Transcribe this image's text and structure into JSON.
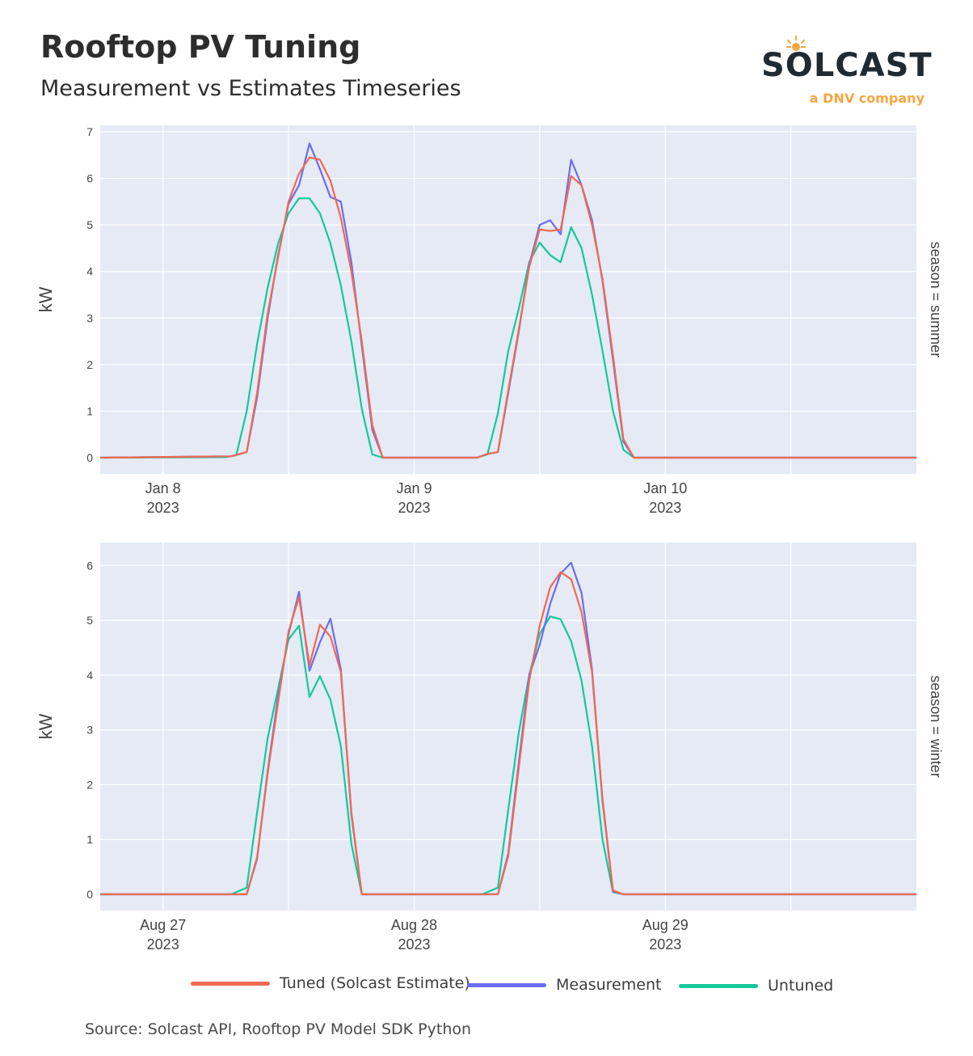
{
  "header": {
    "title": "Rooftop PV Tuning",
    "subtitle": "Measurement vs Estimates Timeseries"
  },
  "logo": {
    "word": "SOLCAST",
    "tagline": "a DNV company",
    "colors": {
      "word": "#1f2a33",
      "tagline": "#f5a640",
      "sun": "#f5a640"
    }
  },
  "source_note": "Source: Solcast API, Rooftop PV Model SDK Python",
  "colors": {
    "tuned": "#ef6a50",
    "measurement": "#6d6cf0",
    "untuned": "#15c89a",
    "plot_bg": "#e5eaf5",
    "grid": "#ffffff"
  },
  "chart_data": [
    {
      "type": "line",
      "facet_label": "season = summer",
      "ylabel": "kW",
      "xlabel": "",
      "ylim": [
        0,
        7
      ],
      "yticks": [
        0,
        1,
        2,
        3,
        4,
        5,
        6,
        7
      ],
      "xrange": [
        "2023-01-07 18:00",
        "2023-01-11 00:00"
      ],
      "x_tick_labels": [
        {
          "at": "2023-01-08 00:00",
          "line1": "Jan 8",
          "line2": "2023"
        },
        {
          "at": "2023-01-09 00:00",
          "line1": "Jan 9",
          "line2": "2023"
        },
        {
          "at": "2023-01-10 00:00",
          "line1": "Jan 10",
          "line2": "2023"
        }
      ],
      "grid": true,
      "series": [
        {
          "name": "Tuned (Solcast Estimate)",
          "points": [
            [
              "2023-01-07 18:00",
              0
            ],
            [
              "2023-01-08 06:30",
              0.03
            ],
            [
              "2023-01-08 08:00",
              0.12
            ],
            [
              "2023-01-08 09:00",
              1.4
            ],
            [
              "2023-01-08 10:00",
              3.1
            ],
            [
              "2023-01-08 11:00",
              4.3
            ],
            [
              "2023-01-08 12:00",
              5.5
            ],
            [
              "2023-01-08 13:00",
              6.1
            ],
            [
              "2023-01-08 14:00",
              6.45
            ],
            [
              "2023-01-08 15:00",
              6.4
            ],
            [
              "2023-01-08 16:00",
              5.95
            ],
            [
              "2023-01-08 17:00",
              5.15
            ],
            [
              "2023-01-08 18:00",
              4.0
            ],
            [
              "2023-01-08 19:00",
              2.5
            ],
            [
              "2023-01-08 20:00",
              0.7
            ],
            [
              "2023-01-08 21:00",
              0
            ],
            [
              "2023-01-09 06:00",
              0
            ],
            [
              "2023-01-09 07:00",
              0.08
            ],
            [
              "2023-01-09 08:00",
              0.12
            ],
            [
              "2023-01-09 09:00",
              1.45
            ],
            [
              "2023-01-09 10:00",
              2.75
            ],
            [
              "2023-01-09 11:00",
              4.1
            ],
            [
              "2023-01-09 12:00",
              4.9
            ],
            [
              "2023-01-09 13:00",
              4.87
            ],
            [
              "2023-01-09 14:00",
              4.9
            ],
            [
              "2023-01-09 15:00",
              6.05
            ],
            [
              "2023-01-09 16:00",
              5.85
            ],
            [
              "2023-01-09 17:00",
              5.0
            ],
            [
              "2023-01-09 18:00",
              3.85
            ],
            [
              "2023-01-09 19:00",
              2.2
            ],
            [
              "2023-01-09 20:00",
              0.4
            ],
            [
              "2023-01-09 21:00",
              0
            ],
            [
              "2023-01-11 00:00",
              0
            ]
          ]
        },
        {
          "name": "Measurement",
          "points": [
            [
              "2023-01-07 18:00",
              0
            ],
            [
              "2023-01-08 06:30",
              0.03
            ],
            [
              "2023-01-08 08:00",
              0.12
            ],
            [
              "2023-01-08 09:00",
              1.3
            ],
            [
              "2023-01-08 10:00",
              3.0
            ],
            [
              "2023-01-08 11:00",
              4.35
            ],
            [
              "2023-01-08 12:00",
              5.45
            ],
            [
              "2023-01-08 13:00",
              5.85
            ],
            [
              "2023-01-08 14:00",
              6.75
            ],
            [
              "2023-01-08 15:00",
              6.2
            ],
            [
              "2023-01-08 16:00",
              5.6
            ],
            [
              "2023-01-08 17:00",
              5.5
            ],
            [
              "2023-01-08 18:00",
              4.2
            ],
            [
              "2023-01-08 19:00",
              2.4
            ],
            [
              "2023-01-08 20:00",
              0.6
            ],
            [
              "2023-01-08 21:00",
              0
            ],
            [
              "2023-01-09 06:00",
              0
            ],
            [
              "2023-01-09 07:00",
              0.08
            ],
            [
              "2023-01-09 08:00",
              0.12
            ],
            [
              "2023-01-09 09:00",
              1.4
            ],
            [
              "2023-01-09 10:00",
              2.7
            ],
            [
              "2023-01-09 11:00",
              4.15
            ],
            [
              "2023-01-09 12:00",
              5.0
            ],
            [
              "2023-01-09 13:00",
              5.1
            ],
            [
              "2023-01-09 14:00",
              4.8
            ],
            [
              "2023-01-09 15:00",
              6.4
            ],
            [
              "2023-01-09 16:00",
              5.85
            ],
            [
              "2023-01-09 17:00",
              5.1
            ],
            [
              "2023-01-09 18:00",
              3.8
            ],
            [
              "2023-01-09 19:00",
              2.1
            ],
            [
              "2023-01-09 20:00",
              0.35
            ],
            [
              "2023-01-09 21:00",
              0
            ],
            [
              "2023-01-11 00:00",
              0
            ]
          ]
        },
        {
          "name": "Untuned",
          "points": [
            [
              "2023-01-07 18:00",
              0
            ],
            [
              "2023-01-08 06:00",
              0.01
            ],
            [
              "2023-01-08 07:00",
              0.05
            ],
            [
              "2023-01-08 08:00",
              1.0
            ],
            [
              "2023-01-08 09:00",
              2.45
            ],
            [
              "2023-01-08 10:00",
              3.65
            ],
            [
              "2023-01-08 11:00",
              4.6
            ],
            [
              "2023-01-08 12:00",
              5.25
            ],
            [
              "2023-01-08 13:00",
              5.57
            ],
            [
              "2023-01-08 14:00",
              5.57
            ],
            [
              "2023-01-08 15:00",
              5.25
            ],
            [
              "2023-01-08 16:00",
              4.6
            ],
            [
              "2023-01-08 17:00",
              3.7
            ],
            [
              "2023-01-08 18:00",
              2.5
            ],
            [
              "2023-01-08 19:00",
              1.05
            ],
            [
              "2023-01-08 20:00",
              0.07
            ],
            [
              "2023-01-08 21:00",
              0
            ],
            [
              "2023-01-09 06:00",
              0
            ],
            [
              "2023-01-09 07:00",
              0.07
            ],
            [
              "2023-01-09 08:00",
              0.95
            ],
            [
              "2023-01-09 09:00",
              2.3
            ],
            [
              "2023-01-09 10:00",
              3.2
            ],
            [
              "2023-01-09 11:00",
              4.2
            ],
            [
              "2023-01-09 12:00",
              4.62
            ],
            [
              "2023-01-09 13:00",
              4.35
            ],
            [
              "2023-01-09 14:00",
              4.2
            ],
            [
              "2023-01-09 15:00",
              4.95
            ],
            [
              "2023-01-09 16:00",
              4.5
            ],
            [
              "2023-01-09 17:00",
              3.5
            ],
            [
              "2023-01-09 18:00",
              2.3
            ],
            [
              "2023-01-09 19:00",
              1.0
            ],
            [
              "2023-01-09 20:00",
              0.17
            ],
            [
              "2023-01-09 21:00",
              0
            ],
            [
              "2023-01-11 00:00",
              0
            ]
          ]
        }
      ]
    },
    {
      "type": "line",
      "facet_label": "season = winter",
      "ylabel": "kW",
      "xlabel": "",
      "ylim": [
        0,
        6.3
      ],
      "yticks": [
        0,
        1,
        2,
        3,
        4,
        5,
        6
      ],
      "xrange": [
        "2023-08-26 18:00",
        "2023-08-30 00:00"
      ],
      "x_tick_labels": [
        {
          "at": "2023-08-27 00:00",
          "line1": "Aug 27",
          "line2": "2023"
        },
        {
          "at": "2023-08-28 00:00",
          "line1": "Aug 28",
          "line2": "2023"
        },
        {
          "at": "2023-08-29 00:00",
          "line1": "Aug 29",
          "line2": "2023"
        }
      ],
      "grid": true,
      "series": [
        {
          "name": "Tuned (Solcast Estimate)",
          "points": [
            [
              "2023-08-26 18:00",
              0
            ],
            [
              "2023-08-27 07:00",
              0
            ],
            [
              "2023-08-27 08:00",
              0
            ],
            [
              "2023-08-27 09:00",
              0.68
            ],
            [
              "2023-08-27 10:00",
              2.2
            ],
            [
              "2023-08-27 11:00",
              3.5
            ],
            [
              "2023-08-27 12:00",
              4.8
            ],
            [
              "2023-08-27 13:00",
              5.42
            ],
            [
              "2023-08-27 14:00",
              4.18
            ],
            [
              "2023-08-27 15:00",
              4.92
            ],
            [
              "2023-08-27 16:00",
              4.7
            ],
            [
              "2023-08-27 17:00",
              4.05
            ],
            [
              "2023-08-27 18:00",
              1.5
            ],
            [
              "2023-08-27 19:00",
              0
            ],
            [
              "2023-08-28 07:00",
              0
            ],
            [
              "2023-08-28 08:00",
              0
            ],
            [
              "2023-08-28 09:00",
              0.7
            ],
            [
              "2023-08-28 10:00",
              2.3
            ],
            [
              "2023-08-28 11:00",
              3.9
            ],
            [
              "2023-08-28 12:00",
              4.9
            ],
            [
              "2023-08-28 13:00",
              5.6
            ],
            [
              "2023-08-28 14:00",
              5.88
            ],
            [
              "2023-08-28 15:00",
              5.75
            ],
            [
              "2023-08-28 16:00",
              5.15
            ],
            [
              "2023-08-28 17:00",
              4.05
            ],
            [
              "2023-08-28 18:00",
              1.75
            ],
            [
              "2023-08-28 19:00",
              0.07
            ],
            [
              "2023-08-28 20:00",
              0
            ],
            [
              "2023-08-30 00:00",
              0
            ]
          ]
        },
        {
          "name": "Measurement",
          "points": [
            [
              "2023-08-26 18:00",
              0
            ],
            [
              "2023-08-27 07:00",
              0
            ],
            [
              "2023-08-27 08:00",
              0
            ],
            [
              "2023-08-27 09:00",
              0.65
            ],
            [
              "2023-08-27 10:00",
              2.25
            ],
            [
              "2023-08-27 11:00",
              3.6
            ],
            [
              "2023-08-27 12:00",
              4.75
            ],
            [
              "2023-08-27 13:00",
              5.52
            ],
            [
              "2023-08-27 14:00",
              4.08
            ],
            [
              "2023-08-27 15:00",
              4.6
            ],
            [
              "2023-08-27 16:00",
              5.03
            ],
            [
              "2023-08-27 17:00",
              4.1
            ],
            [
              "2023-08-27 18:00",
              1.45
            ],
            [
              "2023-08-27 19:00",
              0
            ],
            [
              "2023-08-28 07:00",
              0
            ],
            [
              "2023-08-28 08:00",
              0
            ],
            [
              "2023-08-28 09:00",
              0.75
            ],
            [
              "2023-08-28 10:00",
              2.4
            ],
            [
              "2023-08-28 11:00",
              4.0
            ],
            [
              "2023-08-28 12:00",
              4.55
            ],
            [
              "2023-08-28 13:00",
              5.3
            ],
            [
              "2023-08-28 14:00",
              5.85
            ],
            [
              "2023-08-28 15:00",
              6.05
            ],
            [
              "2023-08-28 16:00",
              5.5
            ],
            [
              "2023-08-28 17:00",
              4.1
            ],
            [
              "2023-08-28 18:00",
              1.7
            ],
            [
              "2023-08-28 19:00",
              0.05
            ],
            [
              "2023-08-28 20:00",
              0
            ],
            [
              "2023-08-30 00:00",
              0
            ]
          ]
        },
        {
          "name": "Untuned",
          "points": [
            [
              "2023-08-26 18:00",
              0
            ],
            [
              "2023-08-27 06:30",
              0
            ],
            [
              "2023-08-27 08:00",
              0.12
            ],
            [
              "2023-08-27 09:00",
              1.5
            ],
            [
              "2023-08-27 10:00",
              2.85
            ],
            [
              "2023-08-27 11:00",
              3.75
            ],
            [
              "2023-08-27 12:00",
              4.65
            ],
            [
              "2023-08-27 13:00",
              4.9
            ],
            [
              "2023-08-27 14:00",
              3.6
            ],
            [
              "2023-08-27 15:00",
              3.98
            ],
            [
              "2023-08-27 16:00",
              3.55
            ],
            [
              "2023-08-27 17:00",
              2.7
            ],
            [
              "2023-08-27 18:00",
              0.92
            ],
            [
              "2023-08-27 19:00",
              0
            ],
            [
              "2023-08-28 06:30",
              0
            ],
            [
              "2023-08-28 08:00",
              0.12
            ],
            [
              "2023-08-28 09:00",
              1.55
            ],
            [
              "2023-08-28 10:00",
              2.95
            ],
            [
              "2023-08-28 11:00",
              4.0
            ],
            [
              "2023-08-28 12:00",
              4.75
            ],
            [
              "2023-08-28 13:00",
              5.07
            ],
            [
              "2023-08-28 14:00",
              5.02
            ],
            [
              "2023-08-28 15:00",
              4.62
            ],
            [
              "2023-08-28 16:00",
              3.9
            ],
            [
              "2023-08-28 17:00",
              2.7
            ],
            [
              "2023-08-28 18:00",
              1.0
            ],
            [
              "2023-08-28 19:00",
              0.04
            ],
            [
              "2023-08-28 20:00",
              0
            ],
            [
              "2023-08-30 00:00",
              0
            ]
          ]
        }
      ]
    }
  ],
  "legend": {
    "items": [
      {
        "label": "Tuned (Solcast Estimate)",
        "color": "#ef6a50"
      },
      {
        "label": "Measurement",
        "color": "#6d6cf0"
      },
      {
        "label": "Untuned",
        "color": "#15c89a"
      }
    ]
  }
}
